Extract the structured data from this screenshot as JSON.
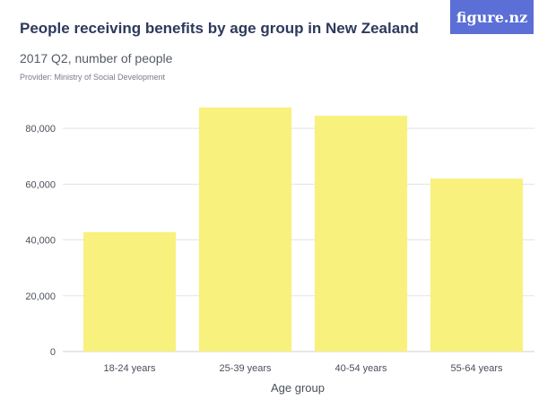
{
  "header": {
    "title": "People receiving benefits by age group in New Zealand",
    "subtitle": "2017 Q2, number of people",
    "provider": "Provider: Ministry of Social Development",
    "logo": "figure.nz"
  },
  "colors": {
    "bar": "#f8f17e",
    "grid": "#e3e3e3",
    "title": "#2e3a5c",
    "logo_bg": "#5b6fd6"
  },
  "chart_data": {
    "type": "bar",
    "categories": [
      "18-24 years",
      "25-39 years",
      "40-54 years",
      "55-64 years"
    ],
    "values": [
      42800,
      87500,
      84500,
      62000
    ],
    "xlabel": "Age group",
    "ylabel": "",
    "ylim": [
      0,
      90000
    ],
    "yticks": [
      0,
      20000,
      40000,
      60000,
      80000
    ],
    "ytick_labels": [
      "0",
      "20,000",
      "40,000",
      "60,000",
      "80,000"
    ],
    "grid": true
  }
}
